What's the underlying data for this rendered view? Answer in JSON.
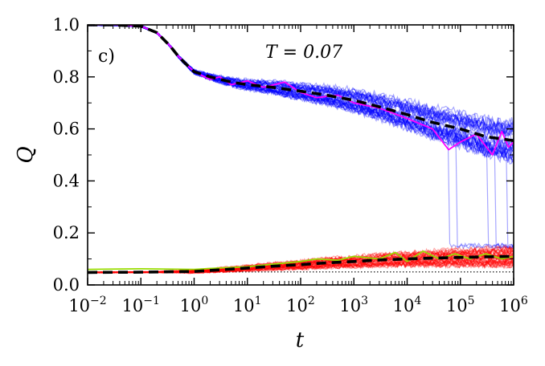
{
  "chart_data": {
    "type": "line",
    "panel_label": "c)",
    "annotation": "T = 0.07",
    "xlabel": "t",
    "ylabel": "Q",
    "xscale": "log",
    "xlim": [
      0.01,
      1000000
    ],
    "ylim": [
      0.0,
      1.0
    ],
    "x_tick_exponents": [
      -2,
      -1,
      0,
      1,
      2,
      3,
      4,
      5,
      6
    ],
    "x_tick_base": "10",
    "y_ticks": [
      "0.0",
      "0.2",
      "0.4",
      "0.6",
      "0.8",
      "1.0"
    ],
    "baseline_y": 0.05,
    "series": [
      {
        "name": "upper ensemble mean",
        "color": "#000000",
        "style": "dashed",
        "x": [
          0.01,
          0.03,
          0.1,
          0.2,
          0.35,
          0.5,
          0.7,
          1,
          2,
          5,
          10,
          30,
          100,
          300,
          1000,
          3000,
          10000,
          30000,
          100000,
          300000,
          1000000
        ],
        "y": [
          1.0,
          1.0,
          0.995,
          0.97,
          0.92,
          0.88,
          0.85,
          0.82,
          0.8,
          0.78,
          0.77,
          0.76,
          0.745,
          0.73,
          0.71,
          0.685,
          0.655,
          0.625,
          0.6,
          0.57,
          0.555
        ]
      },
      {
        "name": "upper highlighted trajectory",
        "color": "#ff00ff",
        "style": "solid",
        "x": [
          0.01,
          0.03,
          0.1,
          0.2,
          0.35,
          0.5,
          0.7,
          1,
          2,
          3,
          5,
          10,
          20,
          50,
          100,
          200,
          500,
          1000,
          3000,
          10000,
          30000,
          60000,
          100000,
          200000,
          400000,
          600000,
          800000,
          1000000
        ],
        "y": [
          1.0,
          1.0,
          0.995,
          0.97,
          0.92,
          0.88,
          0.85,
          0.82,
          0.79,
          0.8,
          0.77,
          0.785,
          0.76,
          0.78,
          0.74,
          0.72,
          0.73,
          0.7,
          0.68,
          0.64,
          0.6,
          0.52,
          0.55,
          0.58,
          0.5,
          0.59,
          0.53,
          0.55
        ]
      },
      {
        "name": "lower ensemble mean",
        "color": "#000000",
        "style": "dashed",
        "x": [
          0.01,
          0.1,
          1,
          3,
          10,
          30,
          100,
          300,
          1000,
          3000,
          10000,
          30000,
          100000,
          300000,
          1000000
        ],
        "y": [
          0.048,
          0.049,
          0.052,
          0.058,
          0.065,
          0.072,
          0.078,
          0.085,
          0.09,
          0.096,
          0.1,
          0.103,
          0.106,
          0.108,
          0.11
        ]
      },
      {
        "name": "lower highlighted trajectory",
        "color": "#99dd00",
        "style": "solid",
        "x": [
          0.01,
          0.1,
          1,
          3,
          10,
          30,
          100,
          200,
          500,
          1000,
          3000,
          6000,
          10000,
          20000,
          40000,
          80000,
          150000,
          300000,
          600000,
          1000000
        ],
        "y": [
          0.06,
          0.062,
          0.06,
          0.065,
          0.07,
          0.08,
          0.09,
          0.1,
          0.095,
          0.11,
          0.1,
          0.125,
          0.09,
          0.13,
          0.1,
          0.12,
          0.1,
          0.12,
          0.1,
          0.11
        ]
      }
    ],
    "ensembles": [
      {
        "name": "upper ensemble trajectories",
        "color": "#0000ff",
        "count": 40,
        "y_start": 1.0
      },
      {
        "name": "lower ensemble trajectories",
        "color": "#ff0000",
        "count": 40,
        "y_start": 0.05
      }
    ]
  }
}
